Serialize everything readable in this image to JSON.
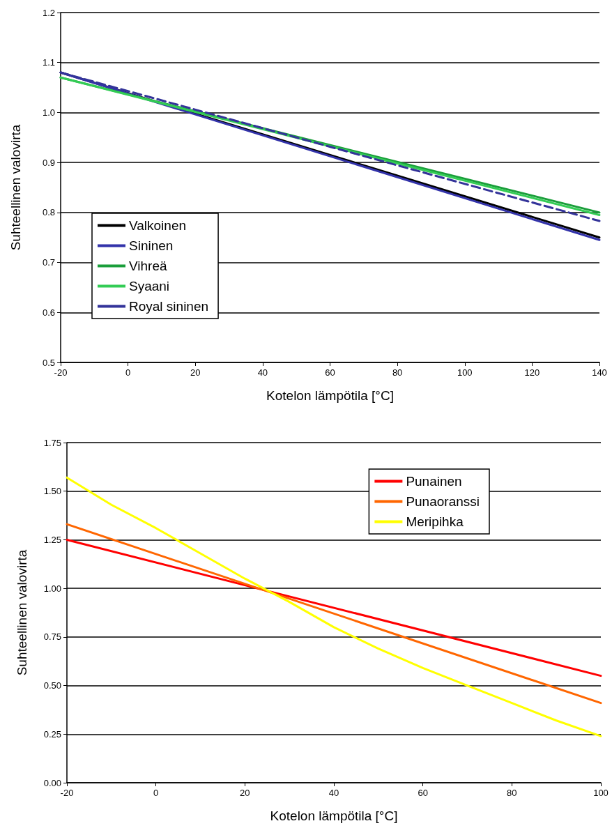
{
  "chart_data": [
    {
      "type": "line",
      "xlabel": "Kotelon lämpötila [°C]",
      "ylabel": "Suhteellinen valovirta",
      "x": [
        -20,
        140
      ],
      "xlim": [
        -20,
        140
      ],
      "xticks": [
        -20,
        0,
        20,
        40,
        60,
        80,
        100,
        120,
        140
      ],
      "ylim": [
        0.5,
        1.2
      ],
      "yticks": [
        {
          "value": 0.5,
          "label": "0.5"
        },
        {
          "value": 0.6,
          "label": "0.6"
        },
        {
          "value": 0.7,
          "label": "0.7"
        },
        {
          "value": 0.8,
          "label": "0.8"
        },
        {
          "value": 0.9,
          "label": "0.9"
        },
        {
          "value": 1.0,
          "label": "1.0"
        },
        {
          "value": 1.1,
          "label": "1.1"
        },
        {
          "value": 1.2,
          "label": "1.2"
        }
      ],
      "grid": "y",
      "legend": "bottom left",
      "marker": "none",
      "series": [
        {
          "name": "Valkoinen",
          "color": "#000000",
          "values": [
            1.08,
            0.75
          ]
        },
        {
          "name": "Sininen",
          "color": "#3333aa",
          "values": [
            1.08,
            0.745
          ]
        },
        {
          "name": "Vihreä",
          "color": "#1a9e3a",
          "values": [
            1.07,
            0.8
          ]
        },
        {
          "name": "Syaani",
          "color": "#33cc55",
          "values": [
            1.07,
            0.795
          ]
        },
        {
          "name": "Royal sininen",
          "color": "#333399",
          "values": [
            1.08,
            0.783
          ],
          "line_style": "dashed"
        }
      ]
    },
    {
      "type": "line",
      "xlabel": "Kotelon lämpötila [°C]",
      "ylabel": "Suhteellinen valovirta",
      "x": [
        -20,
        100
      ],
      "xlim": [
        -20,
        100
      ],
      "xticks": [
        -20,
        0,
        20,
        40,
        60,
        80,
        100
      ],
      "ylim": [
        0,
        1.75
      ],
      "yticks": [
        {
          "value": 0,
          "label": "0.00"
        },
        {
          "value": 0.25,
          "label": "0.25"
        },
        {
          "value": 0.5,
          "label": "0.50"
        },
        {
          "value": 0.75,
          "label": "0.75"
        },
        {
          "value": 1.0,
          "label": "1.00"
        },
        {
          "value": 1.25,
          "label": "1.25"
        },
        {
          "value": 1.5,
          "label": "1.50"
        },
        {
          "value": 1.75,
          "label": "1.75"
        }
      ],
      "grid": "y",
      "legend": "top right",
      "marker": "none",
      "series": [
        {
          "name": "Punainen",
          "color": "#ff0000",
          "values": [
            1.25,
            0.55
          ]
        },
        {
          "name": "Punaoranssi",
          "color": "#ff6600",
          "values": [
            1.33,
            0.41
          ]
        },
        {
          "name": "Meripihka",
          "color": "#ffff00",
          "x": [
            -20,
            -10,
            0,
            10,
            20,
            30,
            40,
            50,
            60,
            70,
            80,
            90,
            100
          ],
          "values": [
            1.57,
            1.43,
            1.31,
            1.18,
            1.05,
            0.93,
            0.8,
            0.69,
            0.59,
            0.5,
            0.41,
            0.32,
            0.24
          ]
        }
      ]
    }
  ]
}
